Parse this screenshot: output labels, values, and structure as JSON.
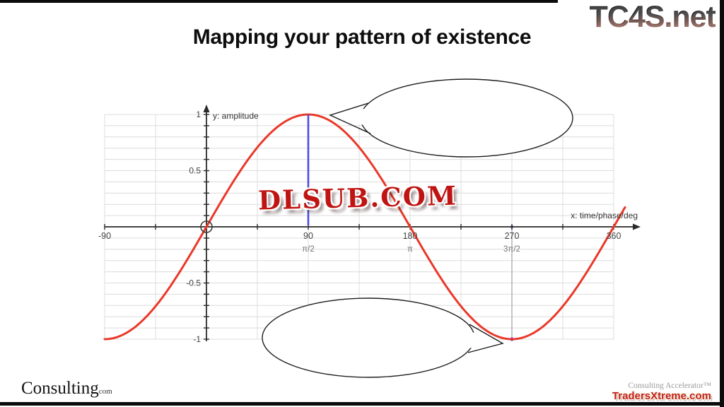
{
  "slide": {
    "title": "Mapping your pattern of existence"
  },
  "watermarks": {
    "top_right_logo": "TC4S.net",
    "center_watermark": "DLSUB.COM",
    "bottom_left_brand": "Consulting",
    "bottom_left_brand_suffix": "com",
    "bottom_right_line1": "Consulting Accelerator™",
    "bottom_right_line2": "TradersXtreme.com"
  },
  "chart_data": {
    "type": "line",
    "title": "",
    "function": "y = sin(x)",
    "xlabel": "x: time/phase/deg",
    "ylabel": "y: amplitude",
    "xlim": [
      -90,
      360
    ],
    "ylim": [
      -1,
      1
    ],
    "grid": {
      "on": true,
      "x_step_deg": 45,
      "y_step": 0.1
    },
    "series": [
      {
        "name": "sine-wave",
        "color": "#ea3829",
        "amplitude": 1,
        "period_deg": 360,
        "phase_deg": 0,
        "plot_domain_deg": [
          -90,
          370
        ]
      }
    ],
    "key_points": [
      {
        "deg": -90,
        "y": -1
      },
      {
        "deg": 0,
        "y": 0
      },
      {
        "deg": 90,
        "y": 1
      },
      {
        "deg": 180,
        "y": 0
      },
      {
        "deg": 270,
        "y": -1
      },
      {
        "deg": 360,
        "y": 0
      }
    ],
    "x_ticks": [
      {
        "deg": -90,
        "label": "-90",
        "sublabel": ""
      },
      {
        "deg": 90,
        "label": "90",
        "sublabel": "π/2"
      },
      {
        "deg": 180,
        "label": "180",
        "sublabel": "π"
      },
      {
        "deg": 270,
        "label": "270",
        "sublabel": "3π/2"
      },
      {
        "deg": 360,
        "label": "360",
        "sublabel": ""
      }
    ],
    "y_ticks": [
      {
        "v": 1,
        "label": "1"
      },
      {
        "v": 0.5,
        "label": "0.5"
      },
      {
        "v": -0.5,
        "label": "-0.5"
      },
      {
        "v": -1,
        "label": "-1"
      }
    ],
    "annotations": {
      "peak_marker": {
        "deg": 90,
        "value": 1,
        "line_color": "#4d4de0"
      },
      "trough_marker": {
        "deg": 270,
        "value": -1,
        "line_color": "#aab4be",
        "dot_color": "#4d4de0"
      },
      "origin_circle": {
        "deg": 0,
        "value": 0
      },
      "speech_bubble_top_points_at": "peak (90°, 1)",
      "speech_bubble_bottom_points_at": "trough (270°, -1)"
    },
    "colors": {
      "grid": "#dcdcdc",
      "axis": "#2a2a2a",
      "tick_label": "#444444",
      "sub_tick_label": "#777777"
    }
  }
}
